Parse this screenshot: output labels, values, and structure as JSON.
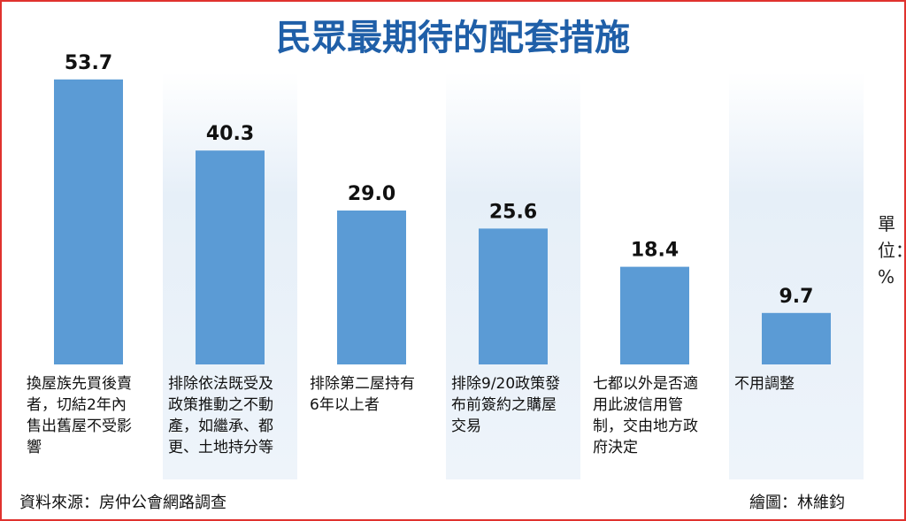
{
  "chart_data": {
    "type": "bar",
    "title": "民眾最期待的配套措施",
    "categories": [
      "換屋族先買後賣者，切結2年內售出舊屋不受影響",
      "排除依法既受及政策推動之不動產，如繼承、都更、土地持分等",
      "排除第二屋持有6年以上者",
      "排除9/20政策發布前簽約之購屋交易",
      "七都以外是否適用此波信用管制，交由地方政府決定",
      "不用調整"
    ],
    "values": [
      53.7,
      40.3,
      29.0,
      25.6,
      18.4,
      9.7
    ],
    "value_labels": [
      "53.7",
      "40.3",
      "29.0",
      "25.6",
      "18.4",
      "9.7"
    ],
    "color": "#5b9bd5",
    "unit": "單位：%",
    "source": "資料來源：房仲公會網路調查",
    "credit": "繪圖：林維鈞"
  }
}
